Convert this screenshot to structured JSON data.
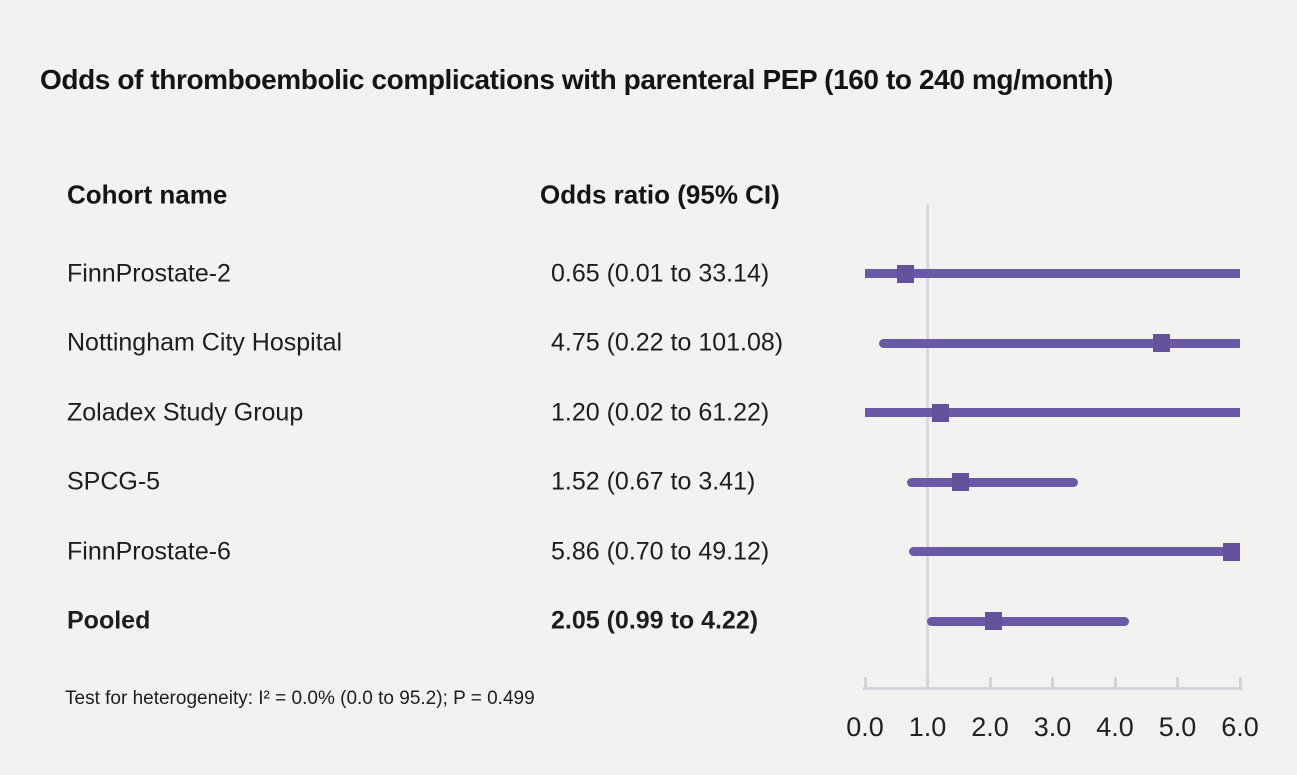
{
  "title": "Odds of thromboembolic complications with parenteral PEP (160 to 240 mg/month)",
  "table": {
    "columns": [
      "Cohort name",
      "Odds ratio (95% CI)"
    ],
    "rows": [
      {
        "cohort": "FinnProstate-2",
        "odds_ratio": "0.65 (0.01 to 33.14)",
        "bold": false
      },
      {
        "cohort": "Nottingham City Hospital",
        "odds_ratio": "4.75 (0.22 to 101.08)",
        "bold": false
      },
      {
        "cohort": "Zoladex Study Group",
        "odds_ratio": "1.20 (0.02 to 61.22)",
        "bold": false
      },
      {
        "cohort": "SPCG-5",
        "odds_ratio": "1.52 (0.67 to 3.41)",
        "bold": false
      },
      {
        "cohort": "FinnProstate-6",
        "odds_ratio": "5.86 (0.70 to 49.12)",
        "bold": false
      },
      {
        "cohort": "Pooled",
        "odds_ratio": "2.05 (0.99 to 4.22)",
        "bold": true
      }
    ]
  },
  "footnote": "Test for heterogeneity: I² = 0.0% (0.0 to 95.2); P = 0.499",
  "chart_data": {
    "type": "scatter",
    "subtype": "forest-plot",
    "orientation": "horizontal",
    "title": "Odds of thromboembolic complications with parenteral PEP (160 to 240 mg/month)",
    "xlabel": "",
    "ylabel": "",
    "xlim": [
      0,
      6
    ],
    "x_ticks": [
      0,
      1,
      2,
      3,
      4,
      5,
      6
    ],
    "x_tick_labels": [
      "0.0",
      "1.0",
      "2.0",
      "3.0",
      "4.0",
      "5.0",
      "6.0"
    ],
    "reference_line_x": 1.0,
    "clip_upper": 6.0,
    "marker_shape": "square",
    "grid": false,
    "legend": false,
    "series": [
      {
        "name": "FinnProstate-2",
        "est": 0.65,
        "lo": 0.01,
        "hi": 33.14,
        "pooled": false
      },
      {
        "name": "Nottingham City Hospital",
        "est": 4.75,
        "lo": 0.22,
        "hi": 101.08,
        "pooled": false
      },
      {
        "name": "Zoladex Study Group",
        "est": 1.2,
        "lo": 0.02,
        "hi": 61.22,
        "pooled": false
      },
      {
        "name": "SPCG-5",
        "est": 1.52,
        "lo": 0.67,
        "hi": 3.41,
        "pooled": false
      },
      {
        "name": "FinnProstate-6",
        "est": 5.86,
        "lo": 0.7,
        "hi": 49.12,
        "pooled": false
      },
      {
        "name": "Pooled",
        "est": 2.05,
        "lo": 0.99,
        "hi": 4.22,
        "pooled": true
      }
    ]
  },
  "colors": {
    "background": "#f2f2f0",
    "text": "#1d1d1d",
    "ci_line": "#6a59a6",
    "marker": "#64529c",
    "reference_line": "#d7dae0",
    "axis": "#d2d5db"
  }
}
